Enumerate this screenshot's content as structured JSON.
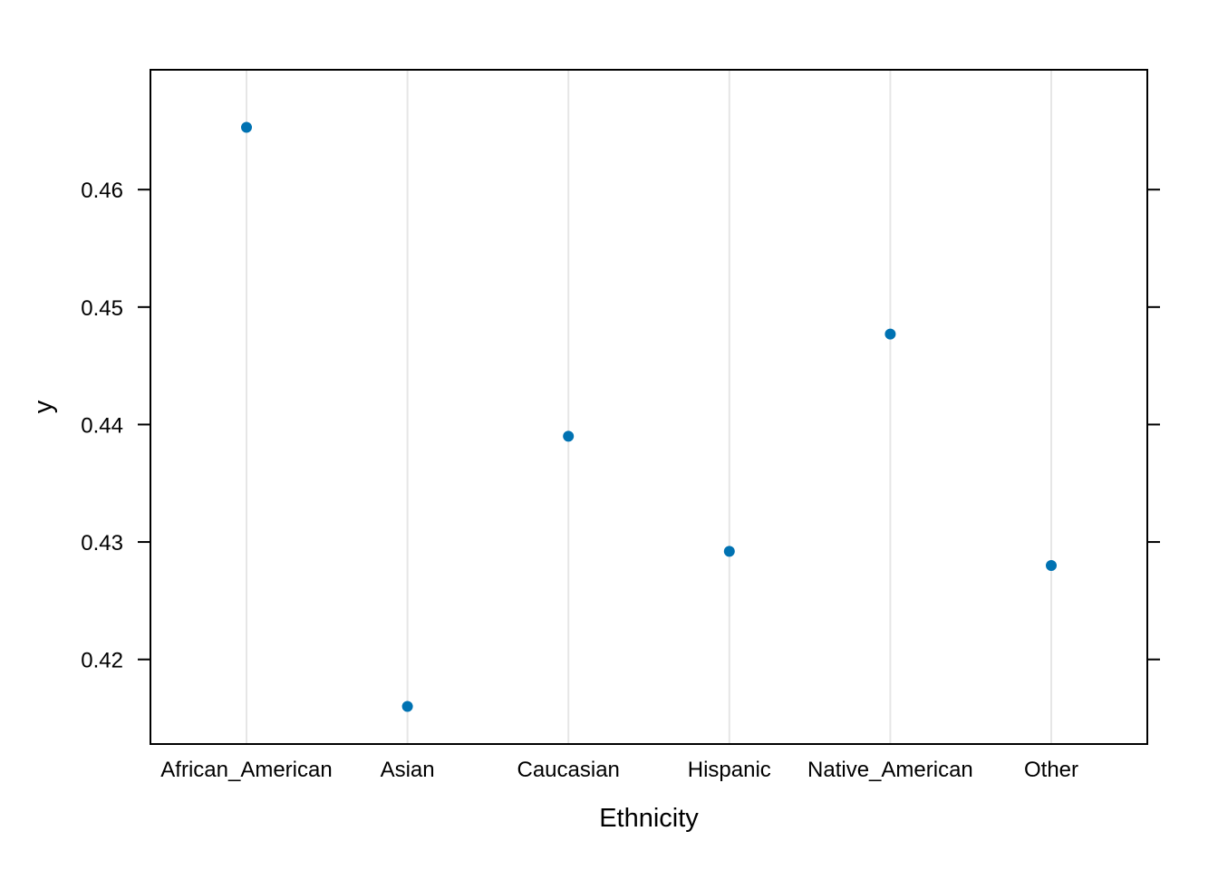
{
  "chart_data": {
    "type": "scatter",
    "title": "",
    "xlabel": "Ethnicity",
    "ylabel": "y",
    "categories": [
      "African_American",
      "Asian",
      "Caucasian",
      "Hispanic",
      "Native_American",
      "Other"
    ],
    "series": [
      {
        "values": [
          0.4653,
          0.416,
          0.439,
          0.4292,
          0.4477,
          0.428
        ]
      }
    ],
    "yticks": [
      "0.42",
      "0.43",
      "0.44",
      "0.45",
      "0.46"
    ],
    "ylim": [
      0.4128,
      0.4702
    ],
    "grid": "vertical lines at categories",
    "legend": "none",
    "colors": {
      "point": "#0072B2",
      "grid": "#e6e6e6",
      "axis": "#000000"
    }
  }
}
